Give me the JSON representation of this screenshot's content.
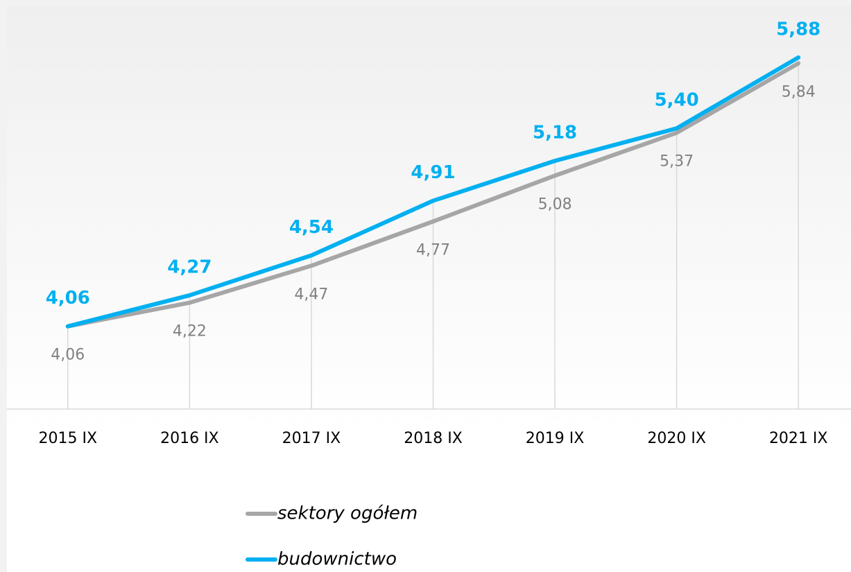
{
  "chart_data": {
    "type": "line",
    "categories": [
      "2015 IX",
      "2016 IX",
      "2017 IX",
      "2018 IX",
      "2019 IX",
      "2020 IX",
      "2021 IX"
    ],
    "series": [
      {
        "name": "sektory ogółem",
        "color": "#a6a6a6",
        "values": [
          4.06,
          4.22,
          4.47,
          4.77,
          5.08,
          5.37,
          5.84
        ],
        "value_labels": [
          "4,06",
          "4,22",
          "4,47",
          "4,77",
          "5,08",
          "5,37",
          "5,84"
        ]
      },
      {
        "name": "budownictwo",
        "color": "#00b0f0",
        "values": [
          4.06,
          4.27,
          4.54,
          4.91,
          5.18,
          5.4,
          5.88
        ],
        "value_labels": [
          "4,06",
          "4,27",
          "4,54",
          "4,91",
          "5,18",
          "5,40",
          "5,88"
        ]
      }
    ],
    "ylim": [
      3.5,
      6.25
    ]
  }
}
